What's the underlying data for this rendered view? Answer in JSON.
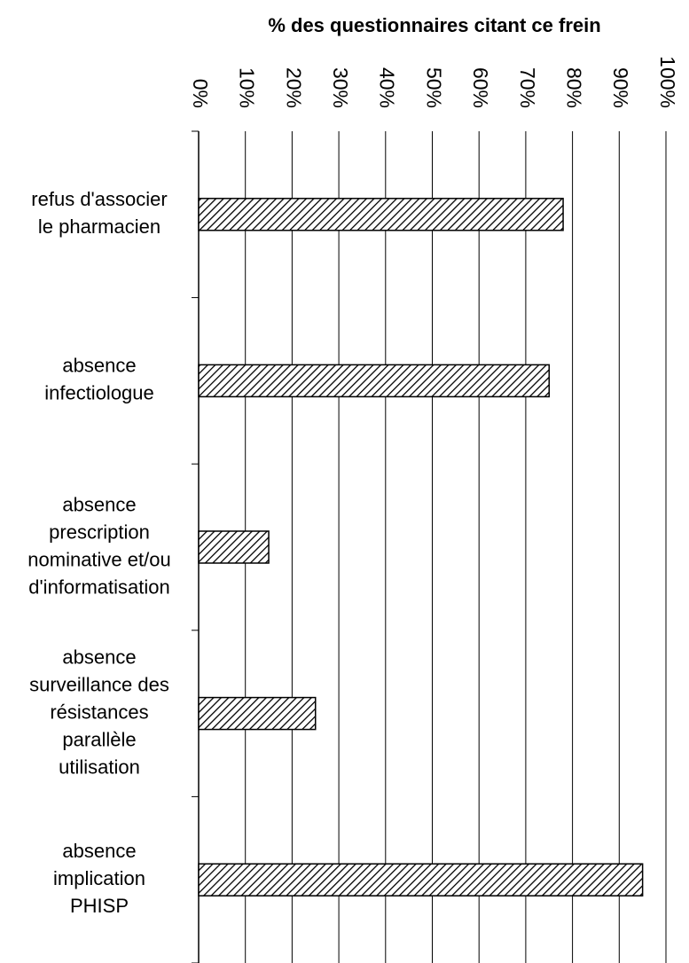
{
  "chart_data": {
    "type": "barh",
    "title": "% des questionnaires citant ce frein",
    "categories": [
      [
        "refus d'associer",
        "le pharmacien"
      ],
      [
        "absence",
        "infectiologue"
      ],
      [
        "absence",
        "prescription",
        "nominative et/ou",
        "d'informatisation"
      ],
      [
        "absence",
        "surveillance des",
        "résistances",
        "parallèle",
        "utilisation"
      ],
      [
        "absence",
        "implication",
        "PHISP"
      ]
    ],
    "values": [
      78,
      75,
      15,
      25,
      95
    ],
    "color": "#000000",
    "xlim": [
      0,
      100
    ],
    "xticks": [
      {
        "value": 0,
        "label": "0%"
      },
      {
        "value": 10,
        "label": "10%"
      },
      {
        "value": 20,
        "label": "20%"
      },
      {
        "value": 30,
        "label": "30%"
      },
      {
        "value": 40,
        "label": "40%"
      },
      {
        "value": 50,
        "label": "50%"
      },
      {
        "value": 60,
        "label": "60%"
      },
      {
        "value": 70,
        "label": "70%"
      },
      {
        "value": 80,
        "label": "80%"
      },
      {
        "value": 90,
        "label": "90%"
      },
      {
        "value": 100,
        "label": "100%"
      }
    ],
    "grid": true
  }
}
